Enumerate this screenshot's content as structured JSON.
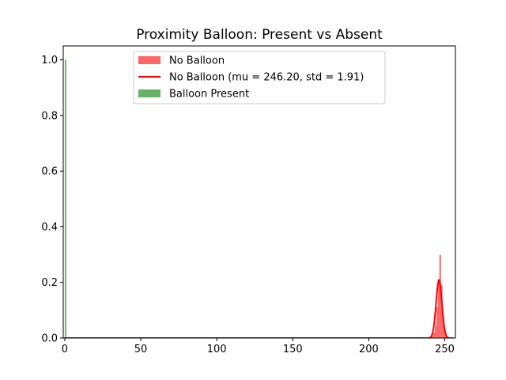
{
  "chart_data": {
    "type": "histogram",
    "title": "Proximity Balloon: Present vs Absent",
    "xlabel": "",
    "ylabel": "",
    "xlim": [
      -1,
      257
    ],
    "ylim": [
      0,
      1.05
    ],
    "x_ticks": [
      0,
      50,
      100,
      150,
      200,
      250
    ],
    "y_ticks": [
      0.0,
      0.2,
      0.4,
      0.6,
      0.8,
      1.0
    ],
    "x_tick_labels": [
      "0",
      "50",
      "100",
      "150",
      "200",
      "250"
    ],
    "y_tick_labels": [
      "0.0",
      "0.2",
      "0.4",
      "0.6",
      "0.8",
      "1.0"
    ],
    "legend": {
      "position": "upper center"
    },
    "series": [
      {
        "name": "No Balloon",
        "kind": "hist",
        "color": "#ff0000",
        "alpha": 0.6,
        "bins": [
          {
            "x0": 240.5,
            "x1": 241.5,
            "value": 0.005
          },
          {
            "x0": 241.5,
            "x1": 242.5,
            "value": 0.01
          },
          {
            "x0": 242.5,
            "x1": 243.5,
            "value": 0.02
          },
          {
            "x0": 243.5,
            "x1": 244.5,
            "value": 0.045
          },
          {
            "x0": 244.5,
            "x1": 245.5,
            "value": 0.11
          },
          {
            "x0": 245.5,
            "x1": 246.5,
            "value": 0.2
          },
          {
            "x0": 246.5,
            "x1": 247.5,
            "value": 0.3
          },
          {
            "x0": 247.5,
            "x1": 248.5,
            "value": 0.19
          },
          {
            "x0": 248.5,
            "x1": 249.5,
            "value": 0.08
          },
          {
            "x0": 249.5,
            "x1": 250.5,
            "value": 0.03
          },
          {
            "x0": 250.5,
            "x1": 251.5,
            "value": 0.01
          }
        ]
      },
      {
        "name": "No Balloon (mu = 246.20,  std = 1.91)",
        "kind": "normal_pdf",
        "color": "#ff0000",
        "mu": 246.2,
        "std": 1.91,
        "x_range": [
          0,
          256
        ]
      },
      {
        "name": "Balloon Present",
        "kind": "hist",
        "color": "#008000",
        "alpha": 0.6,
        "bins": [
          {
            "x0": 0,
            "x1": 1,
            "value": 1.0
          }
        ]
      }
    ]
  }
}
